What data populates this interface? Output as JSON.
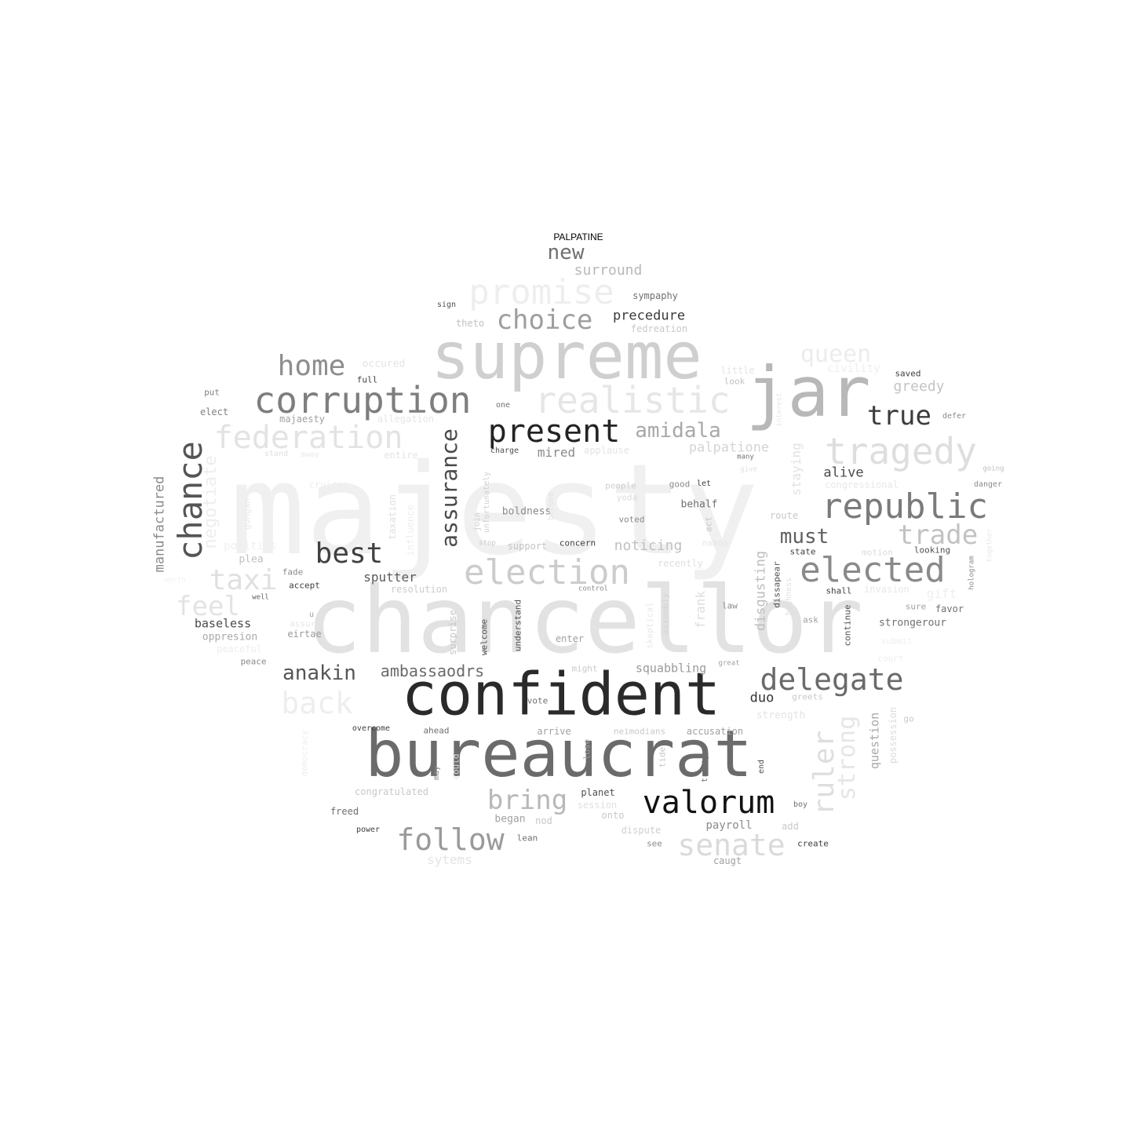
{
  "title": "PALPATINE",
  "words": [
    {
      "text": "majesty",
      "color": "#f0f0f0"
    },
    {
      "text": "chancellor",
      "color": "#e2e2e2"
    },
    {
      "text": "supreme",
      "color": "#cfcfcf"
    },
    {
      "text": "jar",
      "color": "#b8b8b8"
    },
    {
      "text": "confident",
      "color": "#2a2a2a"
    },
    {
      "text": "bureaucrat",
      "color": "#6b6b6b"
    },
    {
      "text": "corruption",
      "color": "#7e7e7e"
    },
    {
      "text": "realistic",
      "color": "#e6e6e6"
    },
    {
      "text": "promise",
      "color": "#eeeeee"
    },
    {
      "text": "tragedy",
      "color": "#dedede"
    },
    {
      "text": "federation",
      "color": "#e3e3e3"
    },
    {
      "text": "chance",
      "color": "#555555"
    },
    {
      "text": "republic",
      "color": "#7a7a7a"
    },
    {
      "text": "election",
      "color": "#cccccc"
    },
    {
      "text": "elected",
      "color": "#8a8a8a"
    },
    {
      "text": "present",
      "color": "#232323"
    },
    {
      "text": "valorum",
      "color": "#121212"
    },
    {
      "text": "delegate",
      "color": "#6a6a6a"
    },
    {
      "text": "follow",
      "color": "#9a9a9a"
    },
    {
      "text": "senate",
      "color": "#dadada"
    },
    {
      "text": "home",
      "color": "#8e8e8e"
    },
    {
      "text": "choice",
      "color": "#9e9e9e"
    },
    {
      "text": "queen",
      "color": "#ececec"
    },
    {
      "text": "true",
      "color": "#3c3c3c"
    },
    {
      "text": "trade",
      "color": "#c2c2c2"
    },
    {
      "text": "best",
      "color": "#404040"
    },
    {
      "text": "taxi",
      "color": "#e0e0e0"
    },
    {
      "text": "feel",
      "color": "#e3e3e3"
    },
    {
      "text": "back",
      "color": "#eeeeee"
    },
    {
      "text": "amidala",
      "color": "#a8a8a8"
    },
    {
      "text": "must",
      "color": "#606060"
    },
    {
      "text": "bring",
      "color": "#b8b8b8"
    },
    {
      "text": "anakin",
      "color": "#555555"
    },
    {
      "text": "ruler",
      "color": "#dedede"
    },
    {
      "text": "strong",
      "color": "#e6e6e6"
    },
    {
      "text": "assurance",
      "color": "#4a4a4a"
    },
    {
      "text": "new",
      "color": "#707070"
    },
    {
      "text": "ambassaodrs",
      "color": "#6a6a6a"
    },
    {
      "text": "surround",
      "color": "#b8b8b8"
    },
    {
      "text": "greedy",
      "color": "#c4c4c4"
    },
    {
      "text": "precedure",
      "color": "#3a3a3a"
    },
    {
      "text": "palpatione",
      "color": "#d4d4d4"
    },
    {
      "text": "negotiate",
      "color": "#eeeeee"
    },
    {
      "text": "manufactured",
      "color": "#8a8a8a"
    },
    {
      "text": "alive",
      "color": "#4a4a4a"
    },
    {
      "text": "noticing",
      "color": "#c0c0c0"
    },
    {
      "text": "squabbling",
      "color": "#9a9a9a"
    },
    {
      "text": "sputter",
      "color": "#5a5a5a"
    },
    {
      "text": "mired",
      "color": "#8a8a8a"
    },
    {
      "text": "baseless",
      "color": "#4a4a4a"
    },
    {
      "text": "duo",
      "color": "#333333"
    },
    {
      "text": "question",
      "color": "#a8a8a8"
    },
    {
      "text": "disgusting",
      "color": "#bebebe"
    },
    {
      "text": "frank",
      "color": "#dedede"
    },
    {
      "text": "staying",
      "color": "#e2e2e2"
    },
    {
      "text": "boldness",
      "color": "#8a8a8a"
    },
    {
      "text": "sympaphy",
      "color": "#707070"
    },
    {
      "text": "fedreation",
      "color": "#c8c8c8"
    },
    {
      "text": "behalf",
      "color": "#707070"
    },
    {
      "text": "resolution",
      "color": "#cccccc"
    },
    {
      "text": "possession",
      "color": "#dcdcdc"
    },
    {
      "text": "taxation",
      "color": "#e0e0e0"
    },
    {
      "text": "influence",
      "color": "#eeeeee"
    },
    {
      "text": "gungan",
      "color": "#e8e8e8"
    },
    {
      "text": "sign",
      "color": "#505050"
    },
    {
      "text": "theto",
      "color": "#c0c0c0"
    },
    {
      "text": "full",
      "color": "#404040"
    },
    {
      "text": "occured",
      "color": "#e4e4e4"
    },
    {
      "text": "put",
      "color": "#808080"
    },
    {
      "text": "elect",
      "color": "#808080"
    },
    {
      "text": "majaesty",
      "color": "#a0a0a0"
    },
    {
      "text": "allegation",
      "color": "#e6e6e6"
    },
    {
      "text": "stand",
      "color": "#e0e0e0"
    },
    {
      "text": "away",
      "color": "#e8e8e8"
    },
    {
      "text": "entire",
      "color": "#e4e4e4"
    },
    {
      "text": "cruiser",
      "color": "#eeeeee"
    },
    {
      "text": "politics",
      "color": "#f0f0f0"
    },
    {
      "text": "plea",
      "color": "#c0c0c0"
    },
    {
      "text": "fade",
      "color": "#8a8a8a"
    },
    {
      "text": "accept",
      "color": "#404040"
    },
    {
      "text": "well",
      "color": "#606060"
    },
    {
      "text": "u",
      "color": "#a0a0a0"
    },
    {
      "text": "assure",
      "color": "#e6e6e6"
    },
    {
      "text": "eirtae",
      "color": "#9a9a9a"
    },
    {
      "text": "oppresion",
      "color": "#a8a8a8"
    },
    {
      "text": "peaceful",
      "color": "#eeeeee"
    },
    {
      "text": "peace",
      "color": "#8a8a8a"
    },
    {
      "text": "one",
      "color": "#707070"
    },
    {
      "text": "charge",
      "color": "#505050"
    },
    {
      "text": "applause",
      "color": "#e4e4e4"
    },
    {
      "text": "join",
      "color": "#d0d0d0"
    },
    {
      "text": "unfortunately",
      "color": "#d0d0d0"
    },
    {
      "text": "become",
      "color": "#e4e4e4"
    },
    {
      "text": "people",
      "color": "#d0d0d0"
    },
    {
      "text": "yoda",
      "color": "#dcdcdc"
    },
    {
      "text": "voted",
      "color": "#8a8a8a"
    },
    {
      "text": "good",
      "color": "#8a8a8a"
    },
    {
      "text": "let",
      "color": "#404040"
    },
    {
      "text": "support",
      "color": "#c4c4c4"
    },
    {
      "text": "concern",
      "color": "#404040"
    },
    {
      "text": "stop",
      "color": "#c8c8c8"
    },
    {
      "text": "recently",
      "color": "#e0e0e0"
    },
    {
      "text": "naboo",
      "color": "#e6e6e6"
    },
    {
      "text": "act",
      "color": "#c4c4c4"
    },
    {
      "text": "control",
      "color": "#8a8a8a"
    },
    {
      "text": "route",
      "color": "#c8c8c8"
    },
    {
      "text": "state",
      "color": "#404040"
    },
    {
      "text": "motion",
      "color": "#dcdcdc"
    },
    {
      "text": "looking",
      "color": "#505050"
    },
    {
      "text": "hologram",
      "color": "#8a8a8a"
    },
    {
      "text": "together",
      "color": "#e8e8e8"
    },
    {
      "text": "danger",
      "color": "#8a8a8a"
    },
    {
      "text": "going",
      "color": "#c0c0c0"
    },
    {
      "text": "congressional",
      "color": "#e8e8e8"
    },
    {
      "text": "many",
      "color": "#707070"
    },
    {
      "text": "give",
      "color": "#e0e0e0"
    },
    {
      "text": "little",
      "color": "#e4e4e4"
    },
    {
      "text": "look",
      "color": "#c0c0c0"
    },
    {
      "text": "civility",
      "color": "#eeeeee"
    },
    {
      "text": "saved",
      "color": "#404040"
    },
    {
      "text": "defer",
      "color": "#8a8a8a"
    },
    {
      "text": "interest",
      "color": "#e4e4e4"
    },
    {
      "text": "invasion",
      "color": "#e8e8e8"
    },
    {
      "text": "gift",
      "color": "#eeeeee"
    },
    {
      "text": "shall",
      "color": "#404040"
    },
    {
      "text": "sure",
      "color": "#a0a0a0"
    },
    {
      "text": "favor",
      "color": "#707070"
    },
    {
      "text": "strongerour",
      "color": "#707070"
    },
    {
      "text": "continue",
      "color": "#505050"
    },
    {
      "text": "ask",
      "color": "#a0a0a0"
    },
    {
      "text": "dissapear",
      "color": "#505050"
    },
    {
      "text": "highness",
      "color": "#e0e0e0"
    },
    {
      "text": "law",
      "color": "#8a8a8a"
    },
    {
      "text": "court",
      "color": "#eeeeee"
    },
    {
      "text": "submit",
      "color": "#eeeeee"
    },
    {
      "text": "assembly",
      "color": "#d4d4d4"
    },
    {
      "text": "skeptical",
      "color": "#e8e8e8"
    },
    {
      "text": "understand",
      "color": "#505050"
    },
    {
      "text": "welcome",
      "color": "#505050"
    },
    {
      "text": "surprise",
      "color": "#c8c8c8"
    },
    {
      "text": "enter",
      "color": "#a0a0a0"
    },
    {
      "text": "might",
      "color": "#c8c8c8"
    },
    {
      "text": "great",
      "color": "#a0a0a0"
    },
    {
      "text": "greets",
      "color": "#c8c8c8"
    },
    {
      "text": "strength",
      "color": "#e4e4e4"
    },
    {
      "text": "vote",
      "color": "#707070"
    },
    {
      "text": "overcome",
      "color": "#404040"
    },
    {
      "text": "ahead",
      "color": "#707070"
    },
    {
      "text": "arrive",
      "color": "#a0a0a0"
    },
    {
      "text": "neimodians",
      "color": "#c8c8c8"
    },
    {
      "text": "accusation",
      "color": "#a0a0a0"
    },
    {
      "text": "democracy",
      "color": "#eeeeee"
    },
    {
      "text": "may",
      "color": "#8a8a8a"
    },
    {
      "text": "could",
      "color": "#e0e0e0"
    },
    {
      "text": "lose",
      "color": "#a0a0a0"
    },
    {
      "text": "tide",
      "color": "#c8c8c8"
    },
    {
      "text": "treaty",
      "color": "#707070"
    },
    {
      "text": "end",
      "color": "#505050"
    },
    {
      "text": "go",
      "color": "#c8c8c8"
    },
    {
      "text": "congratulated",
      "color": "#c8c8c8"
    },
    {
      "text": "planet",
      "color": "#505050"
    },
    {
      "text": "session",
      "color": "#e0e0e0"
    },
    {
      "text": "onto",
      "color": "#c8c8c8"
    },
    {
      "text": "freed",
      "color": "#707070"
    },
    {
      "text": "began",
      "color": "#a0a0a0"
    },
    {
      "text": "nod",
      "color": "#c8c8c8"
    },
    {
      "text": "dispute",
      "color": "#d0d0d0"
    },
    {
      "text": "payroll",
      "color": "#8a8a8a"
    },
    {
      "text": "add",
      "color": "#c8c8c8"
    },
    {
      "text": "boy",
      "color": "#707070"
    },
    {
      "text": "power",
      "color": "#404040"
    },
    {
      "text": "lean",
      "color": "#707070"
    },
    {
      "text": "see",
      "color": "#8a8a8a"
    },
    {
      "text": "create",
      "color": "#404040"
    },
    {
      "text": "caugt",
      "color": "#a0a0a0"
    },
    {
      "text": "sytems",
      "color": "#e4e4e4"
    },
    {
      "text": "worth",
      "color": "#f0f0f0"
    }
  ]
}
